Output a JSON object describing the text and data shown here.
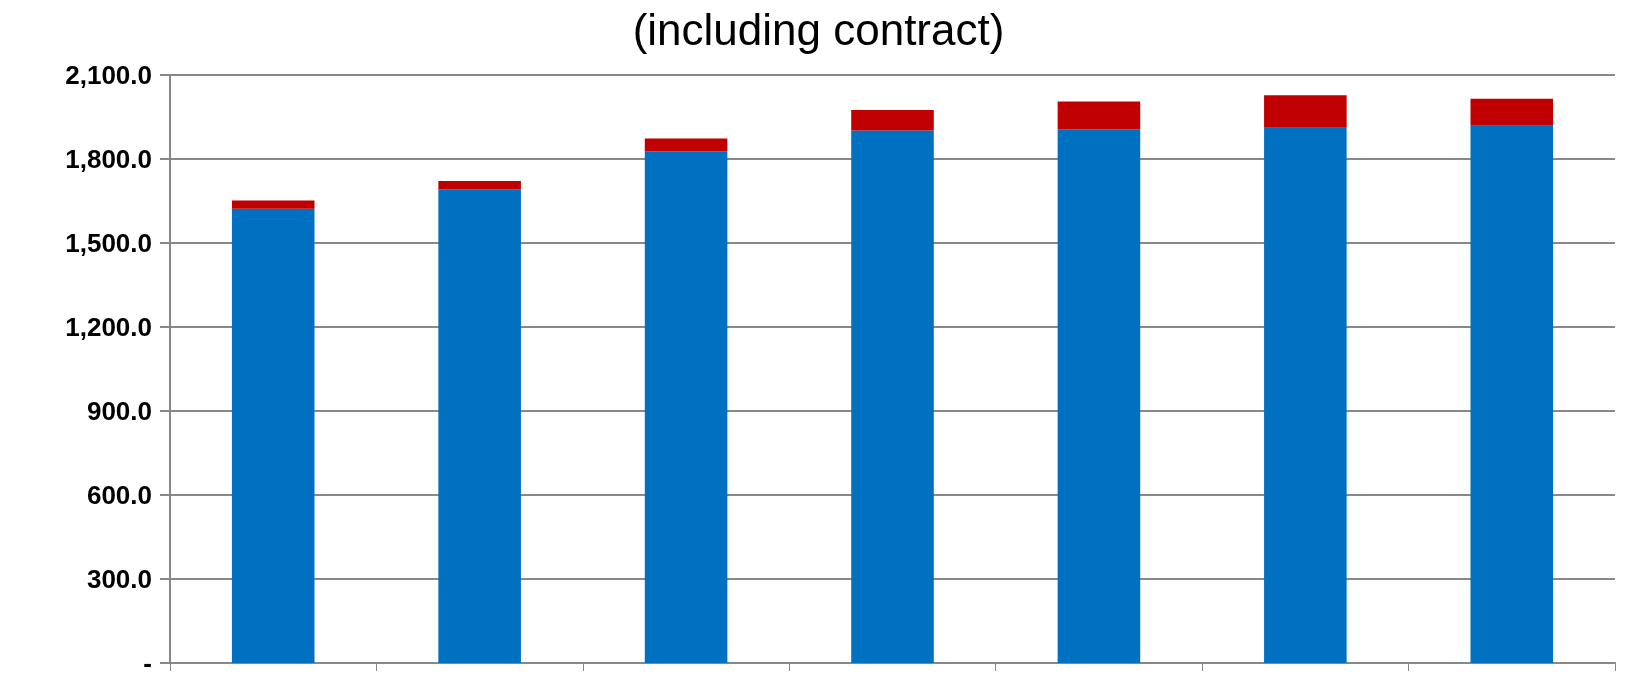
{
  "chart_data": {
    "type": "bar",
    "title": "(including contract)",
    "categories": [
      null,
      null,
      null,
      null,
      null,
      null,
      null
    ],
    "stacked": true,
    "series": [
      {
        "color": "#0070c0",
        "values": [
          1622,
          1691,
          1827,
          1902,
          1906,
          1912,
          1919
        ]
      },
      {
        "color": "#c00000",
        "values": [
          30,
          30,
          46,
          73,
          99,
          116,
          96
        ]
      }
    ],
    "ylim": [
      0,
      2100
    ],
    "yticks": [
      {
        "value": 0,
        "label": "-"
      },
      {
        "value": 300,
        "label": "300.0"
      },
      {
        "value": 600,
        "label": "600.0"
      },
      {
        "value": 900,
        "label": "900.0"
      },
      {
        "value": 1200,
        "label": "1,200.0"
      },
      {
        "value": 1500,
        "label": "1,500.0"
      },
      {
        "value": 1800,
        "label": "1,800.0"
      },
      {
        "value": 2100,
        "label": "2,100.0"
      }
    ],
    "grid": "y"
  }
}
